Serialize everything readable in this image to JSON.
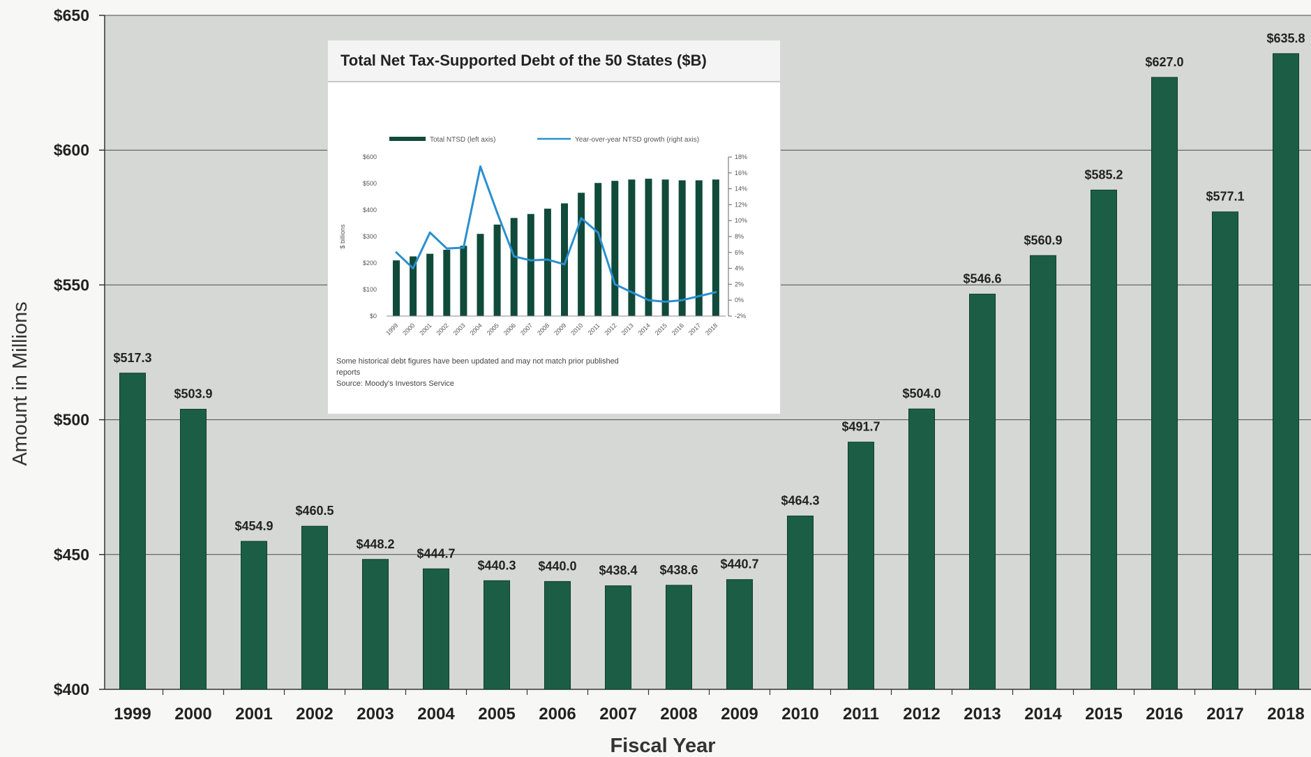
{
  "chart_data": [
    {
      "type": "bar",
      "title": "",
      "xlabel": "Fiscal Year",
      "ylabel": "Amount in Millions",
      "ylim": [
        400,
        650
      ],
      "yticks": [
        "$400",
        "$450",
        "$500",
        "$550",
        "$600",
        "$650"
      ],
      "grid": true,
      "categories": [
        "1999",
        "2000",
        "2001",
        "2002",
        "2003",
        "2004",
        "2005",
        "2006",
        "2007",
        "2008",
        "2009",
        "2010",
        "2011",
        "2012",
        "2013",
        "2014",
        "2015",
        "2016",
        "2017",
        "2018"
      ],
      "values": [
        517.3,
        503.9,
        454.9,
        460.5,
        448.2,
        444.7,
        440.3,
        440.0,
        438.4,
        438.6,
        440.7,
        464.3,
        491.7,
        504.0,
        546.6,
        560.9,
        585.2,
        627.0,
        577.1,
        635.8
      ],
      "data_labels": [
        "$517.3",
        "$503.9",
        "$454.9",
        "$460.5",
        "$448.2",
        "$444.7",
        "$440.3",
        "$440.0",
        "$438.4",
        "$438.6",
        "$440.7",
        "$464.3",
        "$491.7",
        "$504.0",
        "$546.6",
        "$560.9",
        "$585.2",
        "$627.0",
        "$577.1",
        "$635.8"
      ],
      "bar_color": "#1b5e45"
    },
    {
      "type": "bar",
      "title": "Total Net Tax-Supported Debt of the 50 States ($B)",
      "ylabel": "$ billions",
      "ylim": [
        0,
        600
      ],
      "y2lim": [
        -2,
        18
      ],
      "yticks": [
        "$0",
        "$100",
        "$200",
        "$300",
        "$400",
        "$500",
        "$600"
      ],
      "y2ticks": [
        "-2%",
        "0%",
        "2%",
        "4%",
        "6%",
        "8%",
        "10%",
        "12%",
        "14%",
        "16%",
        "18%"
      ],
      "legend_position": "top",
      "categories": [
        "1999",
        "2000",
        "2001",
        "2002",
        "2003",
        "2004",
        "2005",
        "2006",
        "2007",
        "2008",
        "2009",
        "2010",
        "2011",
        "2012",
        "2013",
        "2014",
        "2015",
        "2016",
        "2017",
        "2018"
      ],
      "series": [
        {
          "name": "Total NTSD (left axis)",
          "kind": "bar",
          "axis": "left",
          "color": "#0f4a3a",
          "values": [
            210,
            225,
            235,
            250,
            265,
            310,
            345,
            370,
            385,
            405,
            425,
            465,
            502,
            510,
            515,
            518,
            515,
            512,
            512,
            515
          ]
        },
        {
          "name": "Year-over-year NTSD growth (right axis)",
          "kind": "line",
          "axis": "right",
          "color": "#2a8fcf",
          "values": [
            6.0,
            4.0,
            8.5,
            6.5,
            6.6,
            16.8,
            11.0,
            5.5,
            5.0,
            5.1,
            4.5,
            10.3,
            8.5,
            2.0,
            1.0,
            0.0,
            -0.2,
            0.0,
            0.5,
            1.0
          ]
        }
      ],
      "note": [
        "Some historical debt figures have been updated and may not match prior published",
        "reports",
        "Source: Moody's Investors Service"
      ]
    }
  ]
}
